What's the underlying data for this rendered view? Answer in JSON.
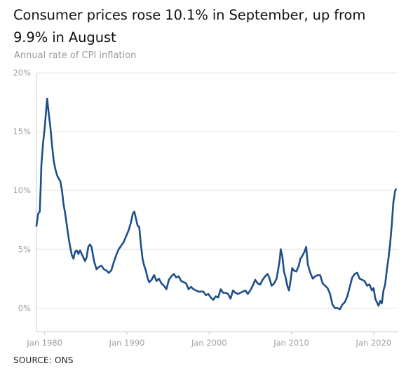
{
  "title": "Consumer prices rose 10.1% in September, up from 9.9% in August",
  "subtitle": "Annual rate of CPI inflation",
  "source": "SOURCE: ONS",
  "colors": {
    "line": "#1f4e8c",
    "grid": "#e6e6e6",
    "axis": "#cccccc",
    "tick_text": "#a0a0a0"
  },
  "chart_data": {
    "type": "line",
    "title": "Consumer prices rose 10.1% in September, up from 9.9% in August",
    "subtitle": "Annual rate of CPI inflation",
    "xlabel": "",
    "ylabel": "",
    "x_ticks": [
      {
        "value": 1980,
        "label": "Jan 1980"
      },
      {
        "value": 1990,
        "label": "Jan 1990"
      },
      {
        "value": 2000,
        "label": "Jan 2000"
      },
      {
        "value": 2010,
        "label": "Jan 2010"
      },
      {
        "value": 2020,
        "label": "Jan 2020"
      }
    ],
    "y_ticks": [
      {
        "value": 0,
        "label": "0%"
      },
      {
        "value": 5,
        "label": "5%"
      },
      {
        "value": 10,
        "label": "10%"
      },
      {
        "value": 15,
        "label": "15%"
      },
      {
        "value": 20,
        "label": "20%"
      }
    ],
    "xlim": [
      1979.0,
      2023.0
    ],
    "ylim": [
      -2,
      20
    ],
    "grid": true,
    "series": [
      {
        "values": [
          [
            1979.0,
            7.0
          ],
          [
            1979.2,
            8.0
          ],
          [
            1979.4,
            8.2
          ],
          [
            1979.5,
            10.0
          ],
          [
            1979.6,
            12.2
          ],
          [
            1979.8,
            14.0
          ],
          [
            1980.0,
            15.3
          ],
          [
            1980.2,
            17.0
          ],
          [
            1980.3,
            17.8
          ],
          [
            1980.5,
            16.5
          ],
          [
            1980.7,
            15.3
          ],
          [
            1980.9,
            13.8
          ],
          [
            1981.1,
            12.5
          ],
          [
            1981.3,
            11.8
          ],
          [
            1981.5,
            11.3
          ],
          [
            1981.7,
            11.0
          ],
          [
            1981.9,
            10.8
          ],
          [
            1982.1,
            10.0
          ],
          [
            1982.3,
            8.8
          ],
          [
            1982.5,
            8.0
          ],
          [
            1982.7,
            7.0
          ],
          [
            1982.9,
            6.0
          ],
          [
            1983.1,
            5.2
          ],
          [
            1983.3,
            4.5
          ],
          [
            1983.5,
            4.2
          ],
          [
            1983.7,
            4.8
          ],
          [
            1983.9,
            4.9
          ],
          [
            1984.1,
            4.6
          ],
          [
            1984.3,
            4.9
          ],
          [
            1984.5,
            4.6
          ],
          [
            1984.7,
            4.3
          ],
          [
            1984.9,
            4.0
          ],
          [
            1985.1,
            4.3
          ],
          [
            1985.3,
            5.2
          ],
          [
            1985.5,
            5.4
          ],
          [
            1985.7,
            5.2
          ],
          [
            1986.0,
            4.0
          ],
          [
            1986.3,
            3.3
          ],
          [
            1986.6,
            3.5
          ],
          [
            1986.9,
            3.6
          ],
          [
            1987.2,
            3.3
          ],
          [
            1987.5,
            3.2
          ],
          [
            1987.8,
            3.0
          ],
          [
            1988.1,
            3.2
          ],
          [
            1988.4,
            3.9
          ],
          [
            1988.7,
            4.5
          ],
          [
            1989.0,
            5.0
          ],
          [
            1989.3,
            5.3
          ],
          [
            1989.6,
            5.6
          ],
          [
            1989.9,
            6.1
          ],
          [
            1990.2,
            6.6
          ],
          [
            1990.5,
            7.3
          ],
          [
            1990.7,
            8.0
          ],
          [
            1990.9,
            8.2
          ],
          [
            1991.1,
            7.6
          ],
          [
            1991.3,
            7.0
          ],
          [
            1991.5,
            6.9
          ],
          [
            1991.7,
            5.4
          ],
          [
            1991.9,
            4.2
          ],
          [
            1992.1,
            3.6
          ],
          [
            1992.3,
            3.2
          ],
          [
            1992.5,
            2.6
          ],
          [
            1992.7,
            2.2
          ],
          [
            1993.0,
            2.4
          ],
          [
            1993.3,
            2.8
          ],
          [
            1993.6,
            2.3
          ],
          [
            1993.9,
            2.5
          ],
          [
            1994.2,
            2.1
          ],
          [
            1994.5,
            1.9
          ],
          [
            1994.8,
            1.6
          ],
          [
            1995.1,
            2.4
          ],
          [
            1995.4,
            2.7
          ],
          [
            1995.7,
            2.9
          ],
          [
            1996.0,
            2.6
          ],
          [
            1996.3,
            2.7
          ],
          [
            1996.6,
            2.3
          ],
          [
            1996.9,
            2.2
          ],
          [
            1997.2,
            2.1
          ],
          [
            1997.5,
            1.6
          ],
          [
            1997.8,
            1.8
          ],
          [
            1998.1,
            1.6
          ],
          [
            1998.4,
            1.5
          ],
          [
            1998.7,
            1.4
          ],
          [
            1999.0,
            1.4
          ],
          [
            1999.3,
            1.4
          ],
          [
            1999.6,
            1.1
          ],
          [
            1999.9,
            1.2
          ],
          [
            2000.2,
            0.9
          ],
          [
            2000.5,
            0.7
          ],
          [
            2000.8,
            1.0
          ],
          [
            2001.1,
            0.9
          ],
          [
            2001.4,
            1.6
          ],
          [
            2001.7,
            1.3
          ],
          [
            2002.0,
            1.3
          ],
          [
            2002.3,
            1.2
          ],
          [
            2002.6,
            0.8
          ],
          [
            2002.9,
            1.5
          ],
          [
            2003.2,
            1.3
          ],
          [
            2003.5,
            1.2
          ],
          [
            2003.8,
            1.3
          ],
          [
            2004.1,
            1.4
          ],
          [
            2004.4,
            1.5
          ],
          [
            2004.7,
            1.2
          ],
          [
            2005.0,
            1.5
          ],
          [
            2005.3,
            1.9
          ],
          [
            2005.6,
            2.4
          ],
          [
            2005.9,
            2.1
          ],
          [
            2006.2,
            2.0
          ],
          [
            2006.5,
            2.4
          ],
          [
            2006.8,
            2.7
          ],
          [
            2007.1,
            2.9
          ],
          [
            2007.3,
            2.6
          ],
          [
            2007.6,
            1.9
          ],
          [
            2007.9,
            2.1
          ],
          [
            2008.2,
            2.5
          ],
          [
            2008.4,
            3.3
          ],
          [
            2008.6,
            4.2
          ],
          [
            2008.7,
            5.0
          ],
          [
            2008.9,
            4.4
          ],
          [
            2009.1,
            3.1
          ],
          [
            2009.3,
            2.6
          ],
          [
            2009.5,
            1.9
          ],
          [
            2009.7,
            1.5
          ],
          [
            2009.9,
            2.3
          ],
          [
            2010.1,
            3.4
          ],
          [
            2010.3,
            3.2
          ],
          [
            2010.6,
            3.1
          ],
          [
            2010.9,
            3.6
          ],
          [
            2011.1,
            4.2
          ],
          [
            2011.3,
            4.4
          ],
          [
            2011.6,
            4.8
          ],
          [
            2011.8,
            5.2
          ],
          [
            2012.0,
            3.7
          ],
          [
            2012.3,
            3.0
          ],
          [
            2012.6,
            2.5
          ],
          [
            2012.9,
            2.7
          ],
          [
            2013.2,
            2.8
          ],
          [
            2013.5,
            2.8
          ],
          [
            2013.8,
            2.1
          ],
          [
            2014.1,
            1.9
          ],
          [
            2014.4,
            1.7
          ],
          [
            2014.7,
            1.2
          ],
          [
            2015.0,
            0.3
          ],
          [
            2015.3,
            0.0
          ],
          [
            2015.6,
            0.0
          ],
          [
            2015.9,
            -0.1
          ],
          [
            2016.2,
            0.3
          ],
          [
            2016.5,
            0.5
          ],
          [
            2016.8,
            1.0
          ],
          [
            2017.1,
            1.8
          ],
          [
            2017.4,
            2.6
          ],
          [
            2017.7,
            2.9
          ],
          [
            2018.0,
            3.0
          ],
          [
            2018.3,
            2.5
          ],
          [
            2018.6,
            2.4
          ],
          [
            2018.9,
            2.3
          ],
          [
            2019.2,
            1.9
          ],
          [
            2019.5,
            2.0
          ],
          [
            2019.8,
            1.5
          ],
          [
            2020.0,
            1.7
          ],
          [
            2020.2,
            0.8
          ],
          [
            2020.4,
            0.5
          ],
          [
            2020.6,
            0.2
          ],
          [
            2020.8,
            0.6
          ],
          [
            2021.0,
            0.4
          ],
          [
            2021.2,
            1.5
          ],
          [
            2021.4,
            2.0
          ],
          [
            2021.6,
            3.2
          ],
          [
            2021.8,
            4.2
          ],
          [
            2022.0,
            5.4
          ],
          [
            2022.2,
            7.0
          ],
          [
            2022.4,
            9.0
          ],
          [
            2022.5,
            9.4
          ],
          [
            2022.6,
            9.9
          ],
          [
            2022.7,
            10.1
          ]
        ]
      }
    ]
  }
}
